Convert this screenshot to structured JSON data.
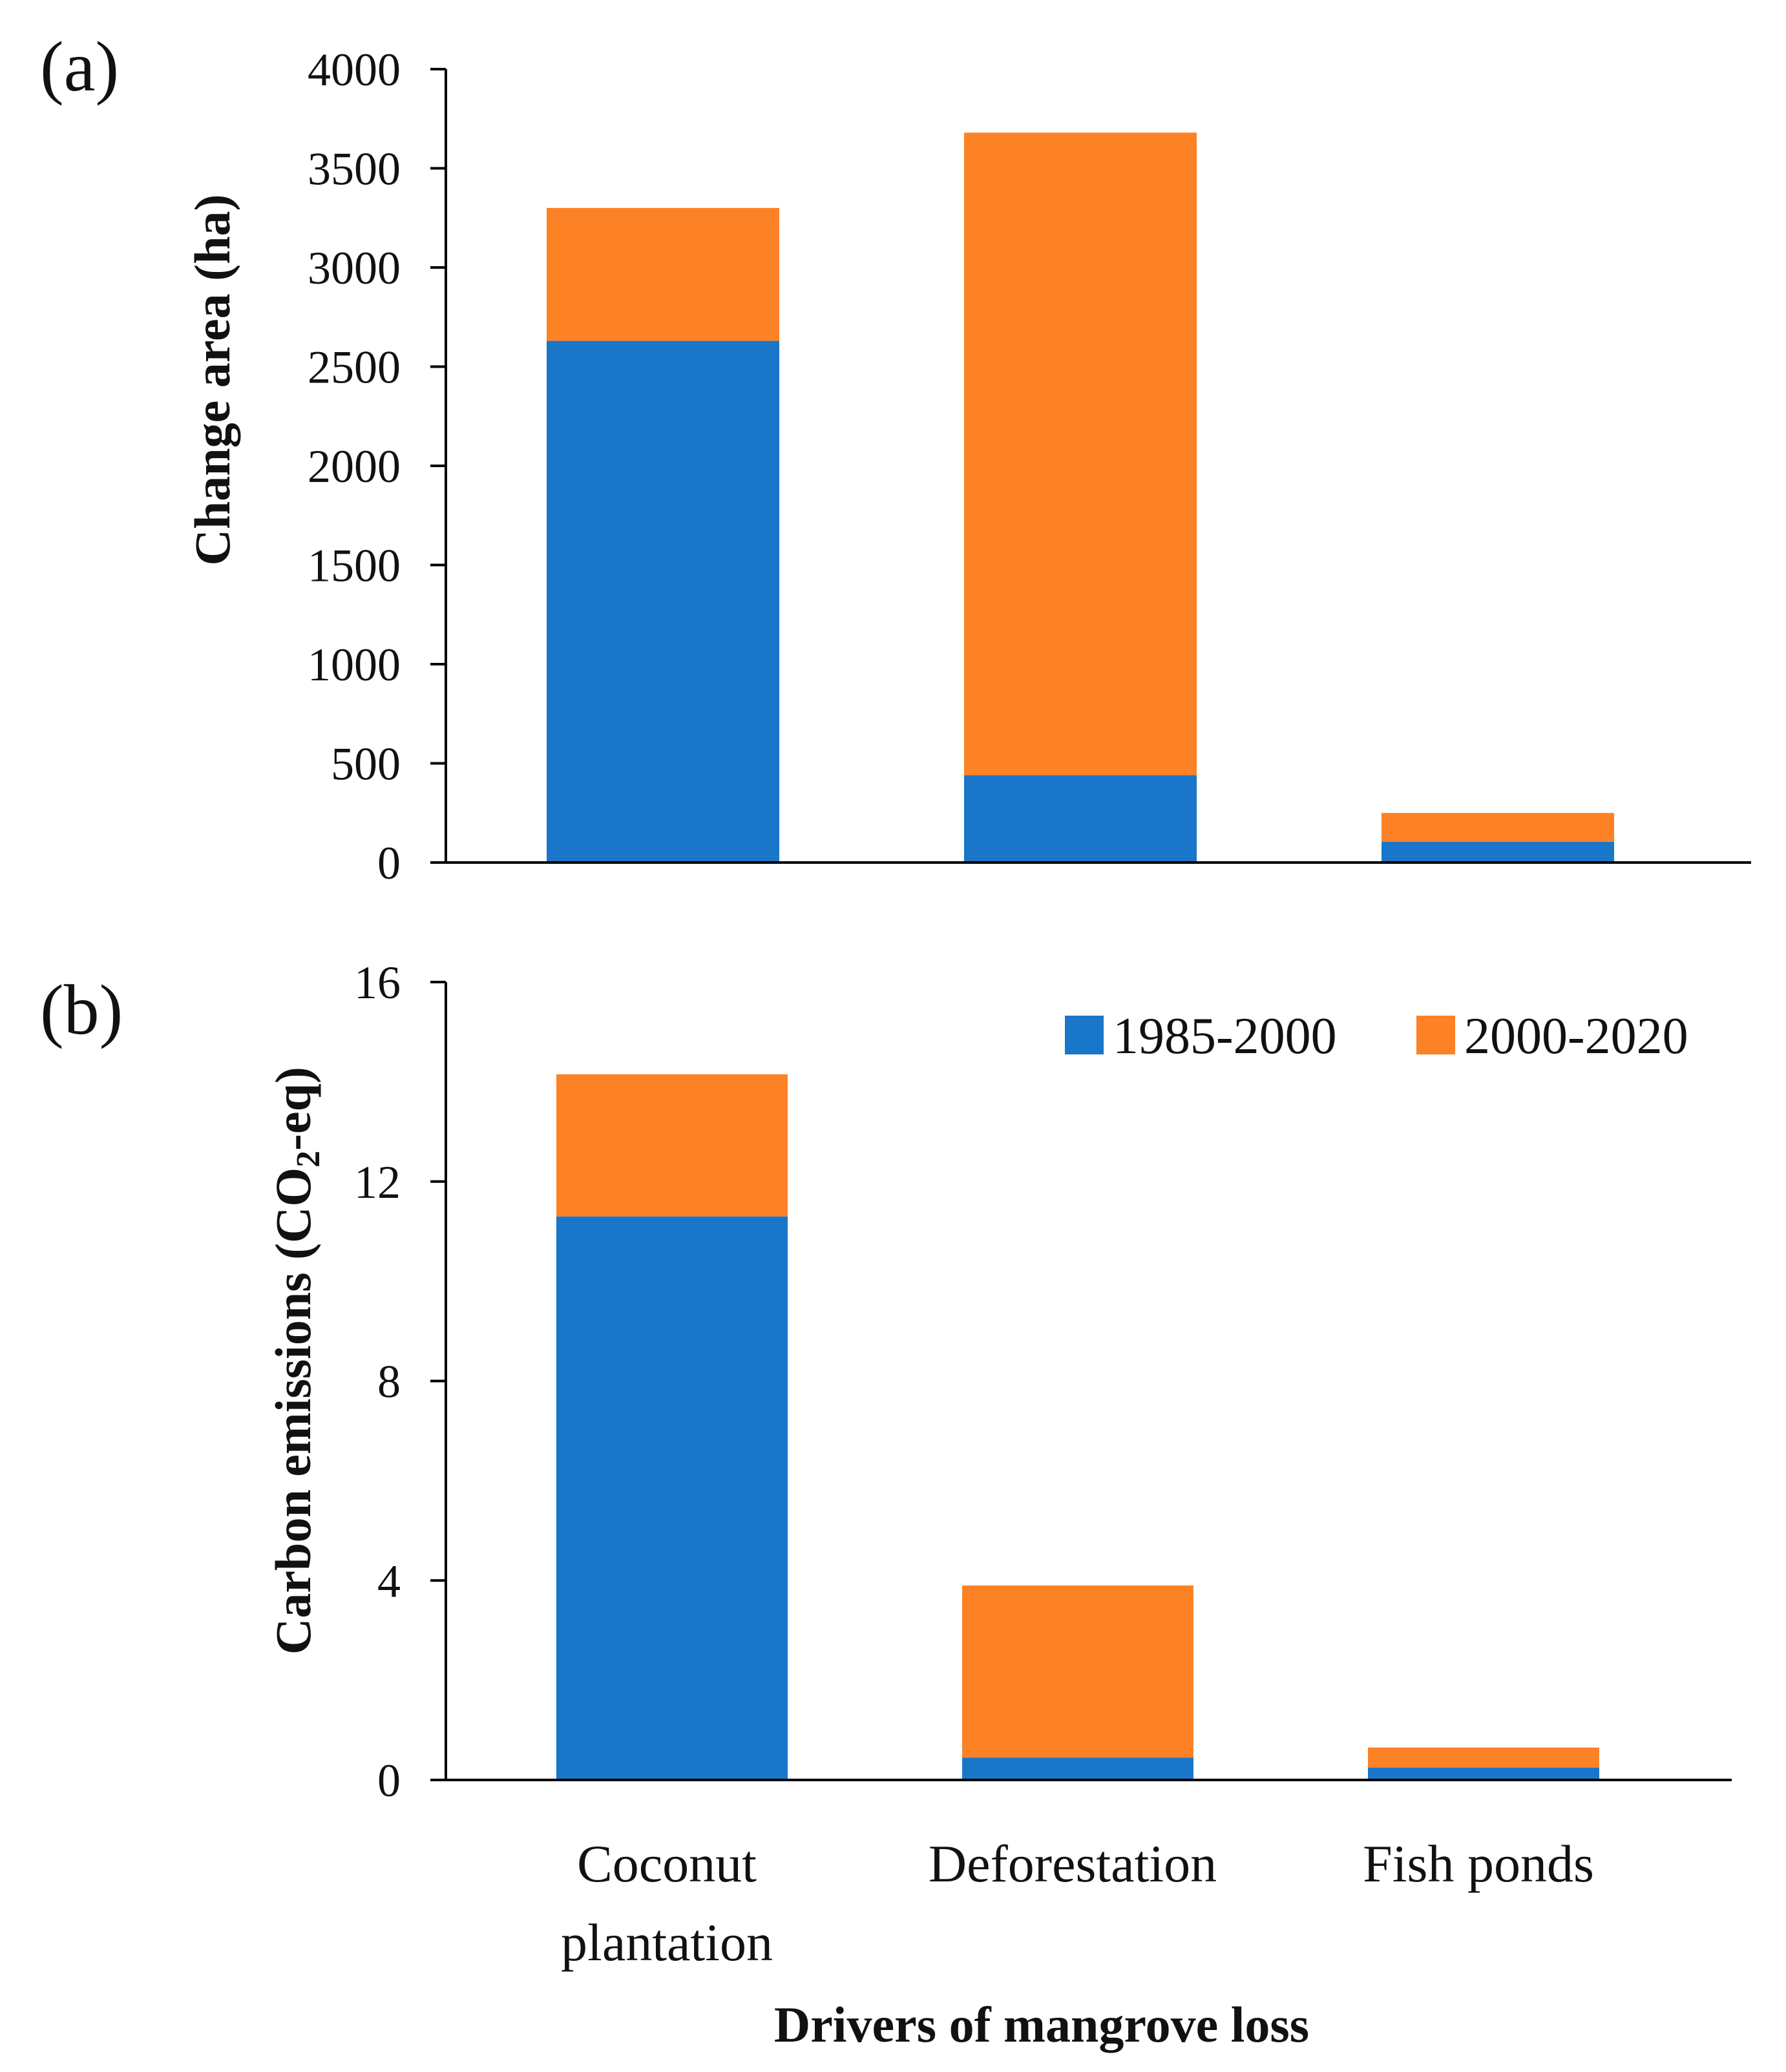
{
  "chart_data": [
    {
      "type": "bar",
      "stacked": true,
      "panel_label": "(a)",
      "categories": [
        "Coconut plantation",
        "Deforestation",
        "Fish ponds"
      ],
      "series": [
        {
          "name": "1985-2000",
          "values": [
            2630,
            440,
            105
          ],
          "color": "#1a76c9"
        },
        {
          "name": "2000-2020",
          "values": [
            670,
            3240,
            145
          ],
          "color": "#fd8125"
        }
      ],
      "ylabel": "Change area (ha)",
      "ylim": [
        0,
        4000
      ],
      "yticks": [
        "0",
        "500",
        "1000",
        "1500",
        "2000",
        "2500",
        "3000",
        "3500",
        "4000"
      ],
      "grid": false
    },
    {
      "type": "bar",
      "stacked": true,
      "panel_label": "(b)",
      "categories": [
        "Coconut plantation",
        "Deforestation",
        "Fish ponds"
      ],
      "category_lines": [
        [
          "Coconut",
          "plantation"
        ],
        [
          "Deforestation"
        ],
        [
          "Fish ponds"
        ]
      ],
      "series": [
        {
          "name": "1985-2000",
          "values": [
            11.3,
            0.45,
            0.25
          ],
          "color": "#1a76c9"
        },
        {
          "name": "2000-2020",
          "values": [
            2.85,
            3.45,
            0.4
          ],
          "color": "#fd8125"
        }
      ],
      "ylabel_parts": {
        "before": "Carbon emissions (CO",
        "sub": "2",
        "after": "-eq)"
      },
      "xlabel": "Drivers of mangrove loss",
      "ylim": [
        0,
        16
      ],
      "yticks": [
        "0",
        "4",
        "8",
        "12",
        "16"
      ],
      "legend": {
        "position": "top-right",
        "entries": [
          "1985-2000",
          "2000-2020"
        ]
      },
      "grid": false
    }
  ]
}
